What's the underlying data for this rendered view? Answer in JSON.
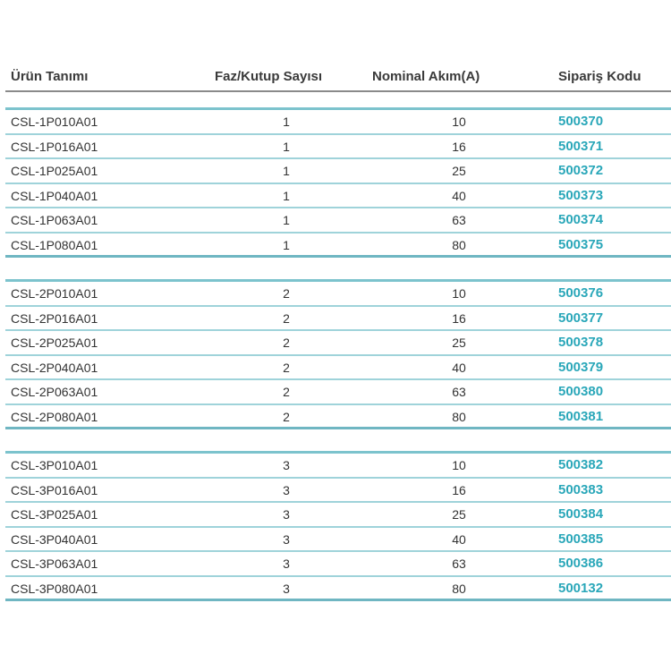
{
  "header": {
    "product": "Ürün Tanımı",
    "poles": "Faz/Kutup Sayısı",
    "current": "Nominal Akım(A)",
    "code": "Sipariş Kodu"
  },
  "groups": [
    {
      "rows": [
        [
          "CSL-1P010A01",
          "1",
          "10",
          "500370"
        ],
        [
          "CSL-1P016A01",
          "1",
          "16",
          "500371"
        ],
        [
          "CSL-1P025A01",
          "1",
          "25",
          "500372"
        ],
        [
          "CSL-1P040A01",
          "1",
          "40",
          "500373"
        ],
        [
          "CSL-1P063A01",
          "1",
          "63",
          "500374"
        ],
        [
          "CSL-1P080A01",
          "1",
          "80",
          "500375"
        ]
      ]
    },
    {
      "rows": [
        [
          "CSL-2P010A01",
          "2",
          "10",
          "500376"
        ],
        [
          "CSL-2P016A01",
          "2",
          "16",
          "500377"
        ],
        [
          "CSL-2P025A01",
          "2",
          "25",
          "500378"
        ],
        [
          "CSL-2P040A01",
          "2",
          "40",
          "500379"
        ],
        [
          "CSL-2P063A01",
          "2",
          "63",
          "500380"
        ],
        [
          "CSL-2P080A01",
          "2",
          "80",
          "500381"
        ]
      ]
    },
    {
      "rows": [
        [
          "CSL-3P010A01",
          "3",
          "10",
          "500382"
        ],
        [
          "CSL-3P016A01",
          "3",
          "16",
          "500383"
        ],
        [
          "CSL-3P025A01",
          "3",
          "25",
          "500384"
        ],
        [
          "CSL-3P040A01",
          "3",
          "40",
          "500385"
        ],
        [
          "CSL-3P063A01",
          "3",
          "63",
          "500386"
        ],
        [
          "CSL-3P080A01",
          "3",
          "80",
          "500132"
        ]
      ]
    }
  ],
  "colors": {
    "accent": "#2aa7b9",
    "rule": "#7cc3cd"
  }
}
